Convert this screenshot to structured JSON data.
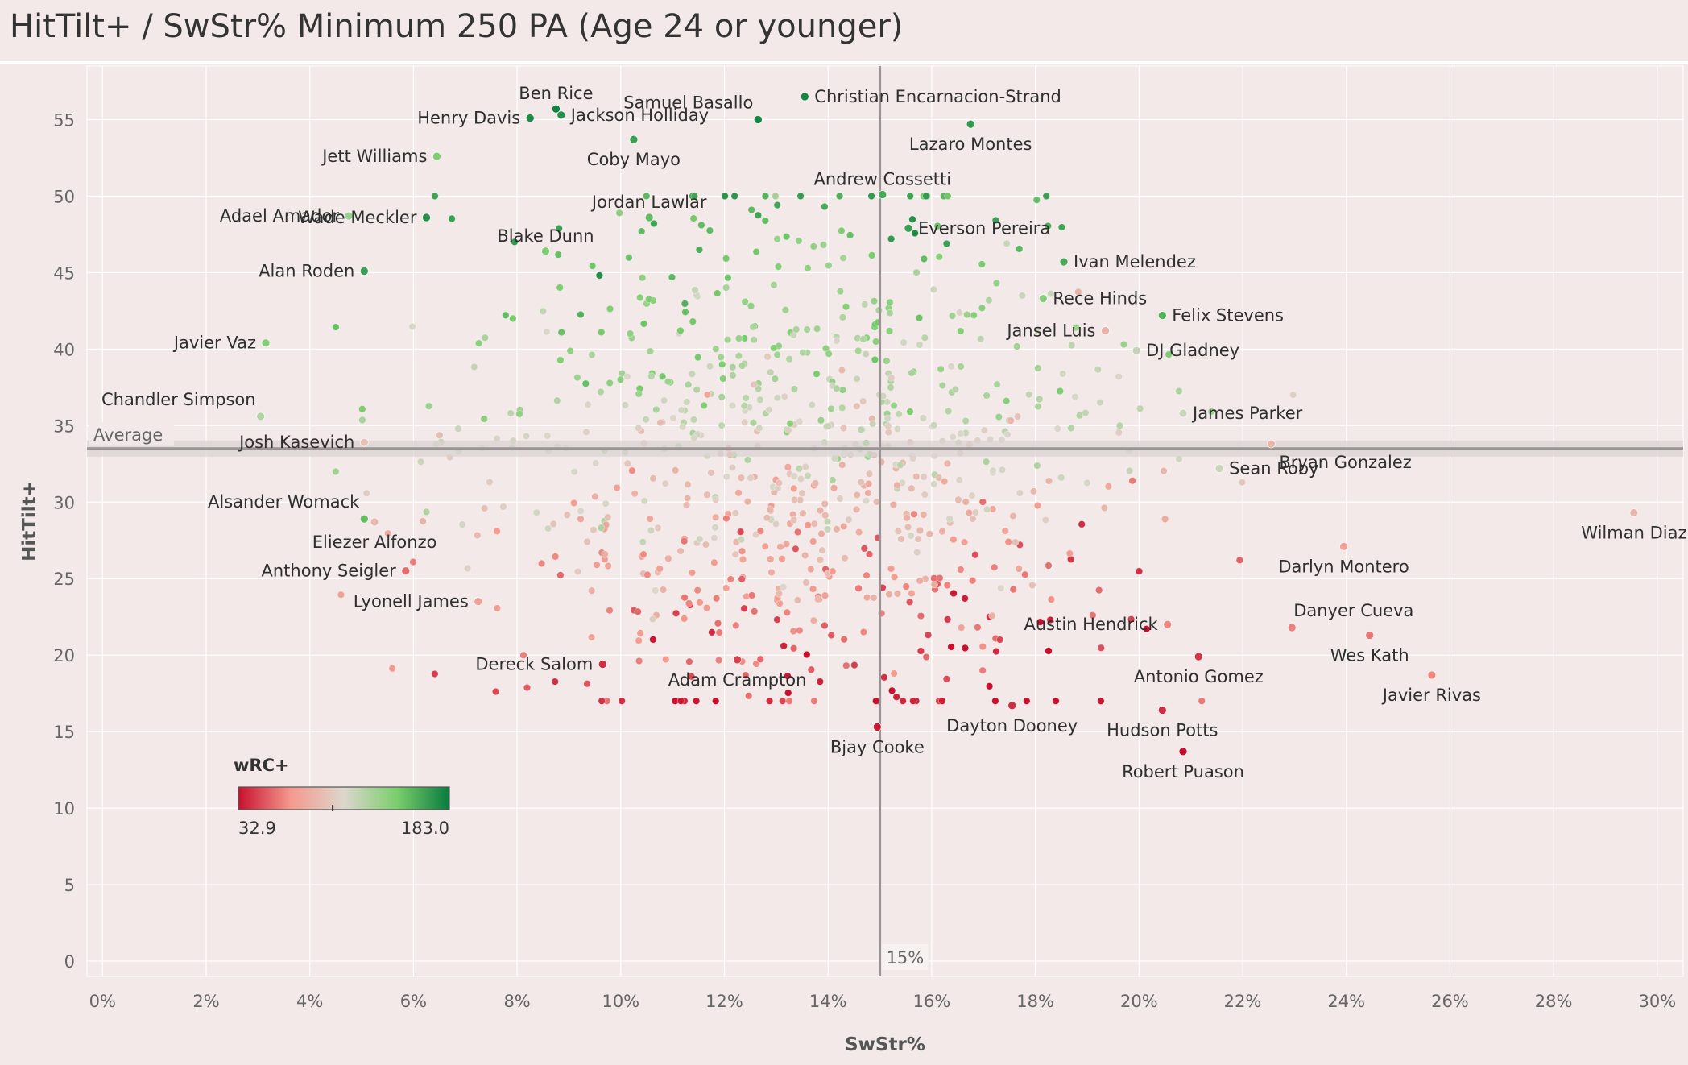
{
  "title": "HitTilt+ / SwStr% Minimum 250 PA (Age 24 or younger)",
  "colors": {
    "background": "#f2e9e8",
    "grid": "#ffffff",
    "reference_line": "#9a9494",
    "low": "#c8102e",
    "mid_low": "#f49a8e",
    "mid": "#dcd6cc",
    "mid_high": "#7cce6e",
    "high": "#087b3e"
  },
  "chart_data": {
    "type": "scatter",
    "title": "HitTilt+ / SwStr% Minimum 250 PA (Age 24 or younger)",
    "xlabel": "SwStr%",
    "ylabel": "HitTilt+",
    "xlim": [
      -0.003,
      0.305
    ],
    "ylim": [
      -1,
      58.5
    ],
    "x_format": "percent",
    "x_ticks": [
      "0%",
      "2%",
      "4%",
      "6%",
      "8%",
      "10%",
      "12%",
      "14%",
      "16%",
      "18%",
      "20%",
      "22%",
      "24%",
      "26%",
      "28%",
      "30%"
    ],
    "x_tick_values": [
      0,
      0.02,
      0.04,
      0.06,
      0.08,
      0.1,
      0.12,
      0.14,
      0.16,
      0.18,
      0.2,
      0.22,
      0.24,
      0.26,
      0.28,
      0.3
    ],
    "y_ticks": [
      "0",
      "5",
      "10",
      "15",
      "20",
      "25",
      "30",
      "35",
      "40",
      "45",
      "50",
      "55"
    ],
    "y_tick_values": [
      0,
      5,
      10,
      15,
      20,
      25,
      30,
      35,
      40,
      45,
      50,
      55
    ],
    "grid": true,
    "reference_lines": {
      "x": {
        "value": 0.15,
        "label": "15%"
      },
      "y": {
        "value": 33.5,
        "label": "Average"
      }
    },
    "color_legend": {
      "title": "wRC+",
      "min_label": "32.9",
      "max_label": "183.0",
      "min": 32.9,
      "max": 183.0,
      "mid": 100,
      "placement": "bottom-left"
    },
    "labeled_points": [
      {
        "name": "Ben Rice",
        "x": 0.0875,
        "y": 55.7,
        "wrc": 180,
        "label_pos": "above"
      },
      {
        "name": "Henry Davis",
        "x": 0.0825,
        "y": 55.1,
        "wrc": 175,
        "label_pos": "left"
      },
      {
        "name": "Jackson Holliday",
        "x": 0.0885,
        "y": 55.3,
        "wrc": 172,
        "label_pos": "right"
      },
      {
        "name": "Samuel Basallo",
        "x": 0.1265,
        "y": 55.0,
        "wrc": 178,
        "label_pos": "above-left"
      },
      {
        "name": "Christian Encarnacion-Strand",
        "x": 0.1355,
        "y": 56.5,
        "wrc": 178,
        "label_pos": "right"
      },
      {
        "name": "Lazaro Montes",
        "x": 0.1675,
        "y": 54.7,
        "wrc": 168,
        "label_pos": "below"
      },
      {
        "name": "Jett Williams",
        "x": 0.0645,
        "y": 52.6,
        "wrc": 140,
        "label_pos": "left"
      },
      {
        "name": "Coby Mayo",
        "x": 0.1025,
        "y": 53.7,
        "wrc": 165,
        "label_pos": "below"
      },
      {
        "name": "Andrew Cossetti",
        "x": 0.1505,
        "y": 50.1,
        "wrc": 160,
        "label_pos": "above"
      },
      {
        "name": "Jordan Lawlar",
        "x": 0.1055,
        "y": 48.6,
        "wrc": 150,
        "label_pos": "above"
      },
      {
        "name": "Wade Meckler",
        "x": 0.0625,
        "y": 48.6,
        "wrc": 172,
        "label_pos": "left"
      },
      {
        "name": "Adael Amador",
        "x": 0.0475,
        "y": 48.7,
        "wrc": 130,
        "label_pos": "left"
      },
      {
        "name": "Blake Dunn",
        "x": 0.0855,
        "y": 46.4,
        "wrc": 140,
        "label_pos": "above"
      },
      {
        "name": "Everson Pereira",
        "x": 0.1555,
        "y": 47.9,
        "wrc": 165,
        "label_pos": "right"
      },
      {
        "name": "Ivan Melendez",
        "x": 0.1855,
        "y": 45.7,
        "wrc": 160,
        "label_pos": "right"
      },
      {
        "name": "Alan Roden",
        "x": 0.0505,
        "y": 45.1,
        "wrc": 165,
        "label_pos": "left"
      },
      {
        "name": "Rece Hinds",
        "x": 0.1815,
        "y": 43.3,
        "wrc": 135,
        "label_pos": "right"
      },
      {
        "name": "Felix Stevens",
        "x": 0.2045,
        "y": 42.2,
        "wrc": 155,
        "label_pos": "right"
      },
      {
        "name": "Jansel Luis",
        "x": 0.1935,
        "y": 41.2,
        "wrc": 80,
        "label_pos": "left"
      },
      {
        "name": "DJ Gladney",
        "x": 0.1995,
        "y": 39.9,
        "wrc": 110,
        "label_pos": "right"
      },
      {
        "name": "Javier Vaz",
        "x": 0.0315,
        "y": 40.4,
        "wrc": 138,
        "label_pos": "left"
      },
      {
        "name": "Chandler Simpson",
        "x": 0.0305,
        "y": 35.6,
        "wrc": 118,
        "label_pos": "above-left"
      },
      {
        "name": "James Parker",
        "x": 0.2085,
        "y": 35.8,
        "wrc": 108,
        "label_pos": "right"
      },
      {
        "name": "Josh Kasevich",
        "x": 0.0505,
        "y": 33.9,
        "wrc": 88,
        "label_pos": "left"
      },
      {
        "name": "Sean Roby",
        "x": 0.2155,
        "y": 32.2,
        "wrc": 108,
        "label_pos": "right"
      },
      {
        "name": "Alsander Womack",
        "x": 0.0505,
        "y": 28.9,
        "wrc": 150,
        "label_pos": "above-left"
      },
      {
        "name": "Bryan Gonzalez",
        "x": 0.2255,
        "y": 33.8,
        "wrc": 82,
        "label_pos": "below-right"
      },
      {
        "name": "Wilman Diaz",
        "x": 0.2955,
        "y": 29.3,
        "wrc": 82,
        "label_pos": "below"
      },
      {
        "name": "Eliezer Alfonzo",
        "x": 0.0525,
        "y": 28.7,
        "wrc": 82,
        "label_pos": "below"
      },
      {
        "name": "Darlyn Montero",
        "x": 0.2395,
        "y": 27.1,
        "wrc": 70,
        "label_pos": "below"
      },
      {
        "name": "Anthony Seigler",
        "x": 0.0585,
        "y": 25.5,
        "wrc": 55,
        "label_pos": "left"
      },
      {
        "name": "Lyonell James",
        "x": 0.0725,
        "y": 23.5,
        "wrc": 70,
        "label_pos": "left"
      },
      {
        "name": "Danyer Cueva",
        "x": 0.2295,
        "y": 21.8,
        "wrc": 60,
        "label_pos": "above-right"
      },
      {
        "name": "Austin Hendrick",
        "x": 0.2055,
        "y": 22.0,
        "wrc": 62,
        "label_pos": "left"
      },
      {
        "name": "Wes Kath",
        "x": 0.2445,
        "y": 21.3,
        "wrc": 58,
        "label_pos": "below"
      },
      {
        "name": "Dereck Salom",
        "x": 0.0965,
        "y": 19.4,
        "wrc": 40,
        "label_pos": "left"
      },
      {
        "name": "Adam Crampton",
        "x": 0.1225,
        "y": 19.7,
        "wrc": 45,
        "label_pos": "below"
      },
      {
        "name": "Antonio Gomez",
        "x": 0.2115,
        "y": 19.9,
        "wrc": 42,
        "label_pos": "below"
      },
      {
        "name": "Javier Rivas",
        "x": 0.2565,
        "y": 18.7,
        "wrc": 62,
        "label_pos": "below"
      },
      {
        "name": "Dayton Dooney",
        "x": 0.1755,
        "y": 16.7,
        "wrc": 40,
        "label_pos": "below"
      },
      {
        "name": "Hudson Potts",
        "x": 0.2045,
        "y": 16.4,
        "wrc": 40,
        "label_pos": "below"
      },
      {
        "name": "Bjay Cooke",
        "x": 0.1495,
        "y": 15.3,
        "wrc": 35,
        "label_pos": "below"
      },
      {
        "name": "Robert Puason",
        "x": 0.2085,
        "y": 13.7,
        "wrc": 33,
        "label_pos": "below"
      }
    ]
  }
}
